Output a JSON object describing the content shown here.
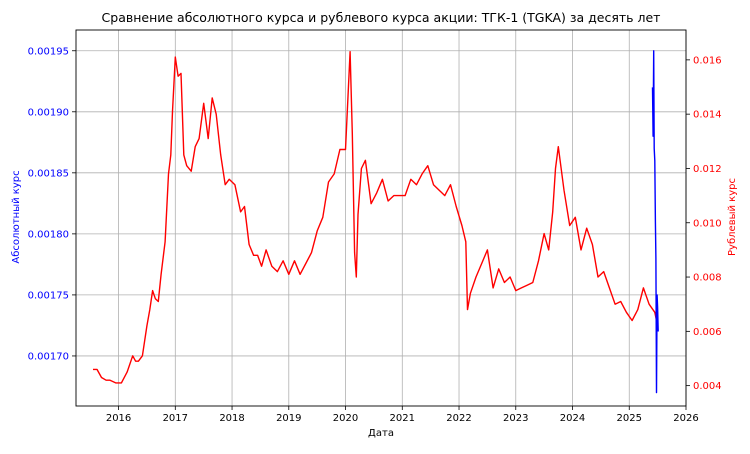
{
  "chart_data": {
    "type": "line",
    "title": "Сравнение абсолютного курса и рублевого курса акции: ТГК-1 (TGKA) за десять лет",
    "xlabel": "Дата",
    "ylabel_left": "Абсолютный курс",
    "ylabel_right": "Рублевый курс",
    "grid": true,
    "colors": {
      "left": "#0000ff",
      "right": "#ff0000",
      "axes": "#000000",
      "grid": "#b0b0b0"
    },
    "x_ticks": [
      "2016",
      "2017",
      "2018",
      "2019",
      "2020",
      "2021",
      "2022",
      "2023",
      "2024",
      "2025",
      "2026"
    ],
    "y_left_ticks": [
      "0.00170",
      "0.00175",
      "0.00180",
      "0.00185",
      "0.00190",
      "0.00195"
    ],
    "y_right_ticks": [
      "0.004",
      "0.006",
      "0.008",
      "0.010",
      "0.012",
      "0.014",
      "0.016"
    ],
    "x_range": [
      2015.25,
      2026.0
    ],
    "y_left_range": [
      0.001659,
      0.001967
    ],
    "y_right_range": [
      0.00325,
      0.0171
    ],
    "series": [
      {
        "axis": "right",
        "color": "#ff0000",
        "x": [
          2015.55,
          2015.62,
          2015.7,
          2015.78,
          2015.85,
          2015.95,
          2016.05,
          2016.15,
          2016.25,
          2016.3,
          2016.35,
          2016.42,
          2016.5,
          2016.55,
          2016.6,
          2016.65,
          2016.7,
          2016.75,
          2016.82,
          2016.88,
          2016.92,
          2016.95,
          2017.0,
          2017.05,
          2017.1,
          2017.15,
          2017.2,
          2017.28,
          2017.35,
          2017.42,
          2017.5,
          2017.58,
          2017.65,
          2017.72,
          2017.8,
          2017.88,
          2017.95,
          2018.05,
          2018.15,
          2018.22,
          2018.3,
          2018.38,
          2018.45,
          2018.52,
          2018.6,
          2018.7,
          2018.8,
          2018.9,
          2019.0,
          2019.1,
          2019.2,
          2019.3,
          2019.4,
          2019.5,
          2019.6,
          2019.7,
          2019.8,
          2019.9,
          2020.0,
          2020.08,
          2020.12,
          2020.16,
          2020.19,
          2020.22,
          2020.28,
          2020.35,
          2020.45,
          2020.55,
          2020.65,
          2020.75,
          2020.85,
          2020.95,
          2021.05,
          2021.15,
          2021.25,
          2021.35,
          2021.45,
          2021.55,
          2021.65,
          2021.75,
          2021.85,
          2021.95,
          2022.05,
          2022.12,
          2022.15,
          2022.2,
          2022.3,
          2022.4,
          2022.5,
          2022.6,
          2022.7,
          2022.8,
          2022.9,
          2023.0,
          2023.1,
          2023.2,
          2023.3,
          2023.4,
          2023.5,
          2023.58,
          2023.65,
          2023.7,
          2023.75,
          2023.85,
          2023.95,
          2024.05,
          2024.15,
          2024.25,
          2024.35,
          2024.45,
          2024.55,
          2024.65,
          2024.75,
          2024.85,
          2024.95,
          2025.05,
          2025.15,
          2025.25,
          2025.35,
          2025.45,
          2025.5
        ],
        "y": [
          0.0046,
          0.0046,
          0.0043,
          0.0042,
          0.0042,
          0.0041,
          0.0041,
          0.0045,
          0.0051,
          0.0049,
          0.0049,
          0.0051,
          0.0062,
          0.0068,
          0.0075,
          0.0072,
          0.0071,
          0.0081,
          0.0093,
          0.0118,
          0.0125,
          0.0141,
          0.0161,
          0.0154,
          0.0155,
          0.0125,
          0.0121,
          0.0119,
          0.0128,
          0.0131,
          0.0144,
          0.0131,
          0.0146,
          0.014,
          0.0125,
          0.0114,
          0.0116,
          0.0114,
          0.0104,
          0.0106,
          0.0092,
          0.0088,
          0.0088,
          0.0084,
          0.009,
          0.0084,
          0.0082,
          0.0086,
          0.0081,
          0.0086,
          0.0081,
          0.0085,
          0.0089,
          0.0097,
          0.0102,
          0.0115,
          0.0118,
          0.0127,
          0.0127,
          0.0163,
          0.0133,
          0.0089,
          0.008,
          0.0103,
          0.012,
          0.0123,
          0.0107,
          0.0111,
          0.0116,
          0.0108,
          0.011,
          0.011,
          0.011,
          0.0116,
          0.0114,
          0.0118,
          0.0121,
          0.0114,
          0.0112,
          0.011,
          0.0114,
          0.0106,
          0.0099,
          0.0093,
          0.0068,
          0.0074,
          0.008,
          0.0085,
          0.009,
          0.0076,
          0.0083,
          0.0078,
          0.008,
          0.0075,
          0.0076,
          0.0077,
          0.0078,
          0.0086,
          0.0096,
          0.009,
          0.0104,
          0.012,
          0.0128,
          0.0112,
          0.0099,
          0.0102,
          0.009,
          0.0098,
          0.0092,
          0.008,
          0.0082,
          0.0076,
          0.007,
          0.0071,
          0.0067,
          0.0064,
          0.0068,
          0.0076,
          0.007,
          0.0067,
          0.0062
        ]
      },
      {
        "axis": "left",
        "color": "#0000ff",
        "x": [
          2025.41,
          2025.42,
          2025.43,
          2025.44,
          2025.45,
          2025.46,
          2025.47,
          2025.48,
          2025.49,
          2025.5,
          2025.51
        ],
        "y": [
          0.00192,
          0.00188,
          0.00195,
          0.00187,
          0.00186,
          0.00181,
          0.00178,
          0.00167,
          0.00175,
          0.00174,
          0.00172
        ]
      }
    ]
  }
}
